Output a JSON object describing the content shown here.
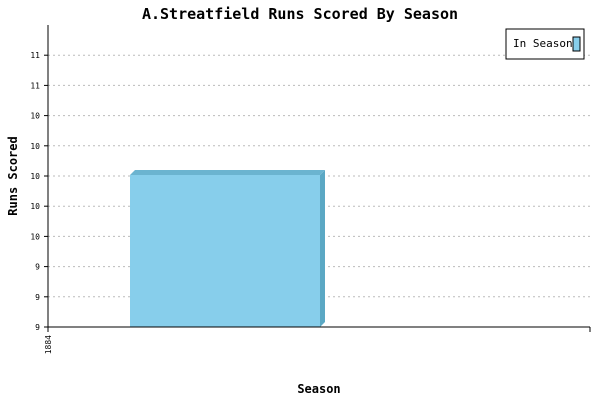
{
  "chart_data": {
    "type": "bar",
    "title": "A.Streatfield Runs Scored By Season",
    "xlabel": "Season",
    "ylabel": "Runs Scored",
    "categories": [
      "1884"
    ],
    "series": [
      {
        "name": "In Season",
        "values": [
          10
        ]
      }
    ],
    "y_tick_labels": [
      "9",
      "9",
      "9",
      "10",
      "10",
      "10",
      "10",
      "10",
      "11",
      "11"
    ],
    "ylim": [
      9,
      11
    ],
    "grid": true,
    "legend_position": "top-right",
    "colors": {
      "bar_front": "#87CEEB",
      "bar_side": "#5BA8C4",
      "bar_top": "#6BB4D0",
      "grid": "#bbbbbb"
    }
  }
}
